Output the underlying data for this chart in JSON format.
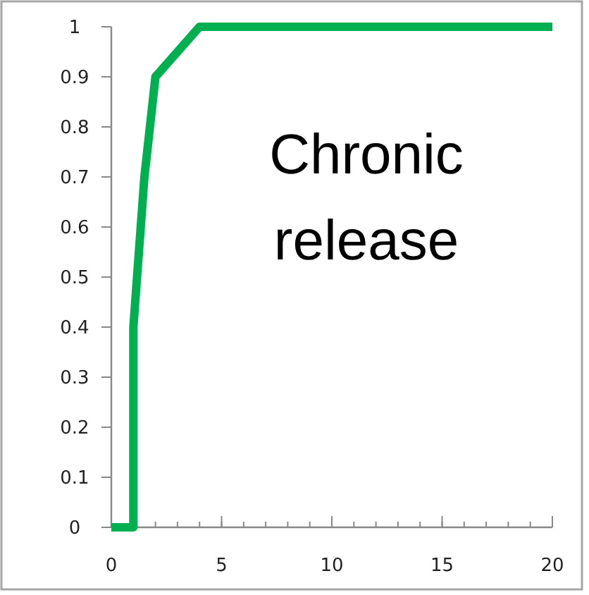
{
  "chart_data": {
    "type": "line",
    "x": [
      0,
      1,
      1,
      1.5,
      2,
      4,
      20
    ],
    "series": [
      {
        "color": "#00b050",
        "values": [
          0,
          0,
          0.4,
          0.7,
          0.9,
          1,
          1
        ]
      }
    ],
    "xlim": [
      0,
      20
    ],
    "xticks": [
      0,
      5,
      10,
      15,
      20
    ],
    "ylim": [
      0,
      1
    ],
    "yticks": [
      0,
      0.1,
      0.2,
      0.3,
      0.4,
      0.5,
      0.6,
      0.7,
      0.8,
      0.9,
      1
    ],
    "grid": false,
    "marker": "none",
    "line_style": "solid",
    "annotations": [
      "Chronic release"
    ]
  }
}
